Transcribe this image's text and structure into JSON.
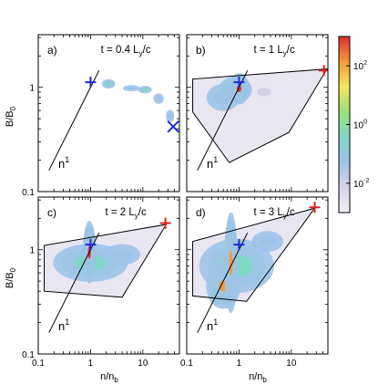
{
  "colors": {
    "frame": "#000000",
    "marker_blue": "#1f2bd6",
    "marker_red": "#e02020",
    "cmap": [
      "#f4f0f6",
      "#d6d2e6",
      "#9fc3e8",
      "#7fd7c6",
      "#9be07a",
      "#f2e85a",
      "#f29a3a",
      "#e03030"
    ]
  },
  "axis_labels": {
    "y": "B/B",
    "y_sub": "0",
    "x": "n/n",
    "x_sub": "b"
  },
  "colorbar": {
    "ticks": [
      {
        "value": 0.01,
        "base": "10",
        "exp": "-2"
      },
      {
        "value": 1,
        "base": "10",
        "exp": "0"
      },
      {
        "value": 100,
        "base": "10",
        "exp": "2"
      }
    ]
  },
  "chart_data": [
    {
      "type": "heatmap",
      "panel": "a)",
      "title": "t = 0.4 L",
      "title_sub": "y",
      "title_end": "/c",
      "xscale": "log",
      "yscale": "log",
      "xlim": [
        0.1,
        50
      ],
      "ylim": [
        0.1,
        3.2
      ],
      "x_ticks": [],
      "y_ticks": [
        "1",
        "0.1"
      ],
      "slope_label": "n",
      "slope_label_sup": "1",
      "slope_line": [
        [
          0.16,
          0.16
        ],
        [
          1.45,
          1.45
        ]
      ],
      "hull": [],
      "blobs": [
        {
          "x": 2.2,
          "y": 1.08,
          "rx": 0.1,
          "ry": 0.035,
          "level": 3
        },
        {
          "x": 6.0,
          "y": 0.98,
          "rx": 0.16,
          "ry": 0.03,
          "level": 2
        },
        {
          "x": 11.0,
          "y": 0.95,
          "rx": 0.1,
          "ry": 0.028,
          "level": 3
        },
        {
          "x": 20.0,
          "y": 0.78,
          "rx": 0.1,
          "ry": 0.05,
          "level": 2
        },
        {
          "x": 33.0,
          "y": 0.53,
          "rx": 0.08,
          "ry": 0.06,
          "level": 2
        }
      ],
      "markers": [
        {
          "x": 1.0,
          "y": 1.12,
          "symbol": "+",
          "color": "blue"
        },
        {
          "x": 38.0,
          "y": 0.42,
          "symbol": "x",
          "color": "blue"
        }
      ]
    },
    {
      "type": "heatmap",
      "panel": "b)",
      "title": "t = 1 L",
      "title_sub": "y",
      "title_end": "/c",
      "xscale": "log",
      "yscale": "log",
      "xlim": [
        0.1,
        50
      ],
      "ylim": [
        0.1,
        3.2
      ],
      "x_ticks": [],
      "y_ticks": [],
      "slope_label": "n",
      "slope_label_sup": "1",
      "slope_line": [
        [
          0.16,
          0.16
        ],
        [
          1.45,
          1.45
        ]
      ],
      "hull": [
        [
          0.13,
          1.2
        ],
        [
          0.13,
          0.58
        ],
        [
          0.65,
          0.19
        ],
        [
          9.0,
          0.37
        ],
        [
          48.0,
          1.5
        ]
      ],
      "blobs": [
        {
          "x": 0.5,
          "y": 0.8,
          "rx": 0.32,
          "ry": 0.13,
          "level": 2
        },
        {
          "x": 0.85,
          "y": 0.95,
          "rx": 0.2,
          "ry": 0.08,
          "level": 4
        },
        {
          "x": 1.0,
          "y": 0.97,
          "rx": 0.08,
          "ry": 0.06,
          "level": 7
        },
        {
          "x": 3.0,
          "y": 0.9,
          "rx": 0.25,
          "ry": 0.07,
          "level": 1
        }
      ],
      "markers": [
        {
          "x": 1.0,
          "y": 1.12,
          "symbol": "+",
          "color": "blue"
        },
        {
          "x": 42.0,
          "y": 1.45,
          "symbol": "+",
          "color": "red"
        }
      ]
    },
    {
      "type": "heatmap",
      "panel": "c)",
      "title": "t = 2 L",
      "title_sub": "y",
      "title_end": "/c",
      "xscale": "log",
      "yscale": "log",
      "xlim": [
        0.1,
        50
      ],
      "ylim": [
        0.1,
        3.2
      ],
      "x_ticks": [
        "0.1",
        "1",
        "10"
      ],
      "y_ticks": [
        "1",
        "0.1"
      ],
      "slope_label": "n",
      "slope_label_sup": "1",
      "slope_line": [
        [
          0.16,
          0.16
        ],
        [
          1.45,
          1.45
        ]
      ],
      "hull": [
        [
          0.13,
          1.1
        ],
        [
          0.13,
          0.4
        ],
        [
          4.0,
          0.35
        ],
        [
          28.0,
          1.75
        ]
      ],
      "blobs": [
        {
          "x": 1.0,
          "y": 0.75,
          "rx": 0.55,
          "ry": 0.14,
          "level": 3
        },
        {
          "x": 4.0,
          "y": 0.9,
          "rx": 0.35,
          "ry": 0.1,
          "level": 2
        },
        {
          "x": 0.95,
          "y": 0.95,
          "rx": 0.05,
          "ry": 0.12,
          "level": 7
        }
      ],
      "markers": [
        {
          "x": 1.0,
          "y": 1.12,
          "symbol": "+",
          "color": "blue"
        },
        {
          "x": 27.0,
          "y": 1.8,
          "symbol": "+",
          "color": "red"
        }
      ]
    },
    {
      "type": "heatmap",
      "panel": "d)",
      "title": "t = 3 L",
      "title_sub": "y",
      "title_end": "/c",
      "xscale": "log",
      "yscale": "log",
      "xlim": [
        0.1,
        50
      ],
      "ylim": [
        0.1,
        3.2
      ],
      "x_ticks": [
        "0.1",
        "1",
        "10"
      ],
      "y_ticks": [],
      "slope_label": "n",
      "slope_label_sup": "1",
      "slope_line": [
        [
          0.16,
          0.16
        ],
        [
          1.45,
          1.45
        ]
      ],
      "hull": [
        [
          0.13,
          1.2
        ],
        [
          0.13,
          0.36
        ],
        [
          1.4,
          0.32
        ],
        [
          28.0,
          2.5
        ]
      ],
      "blobs": [
        {
          "x": 0.9,
          "y": 0.7,
          "rx": 0.55,
          "ry": 0.2,
          "level": 3
        },
        {
          "x": 0.5,
          "y": 0.45,
          "rx": 0.15,
          "ry": 0.1,
          "level": 6
        },
        {
          "x": 0.7,
          "y": 0.75,
          "rx": 0.06,
          "ry": 0.22,
          "level": 6
        },
        {
          "x": 3.5,
          "y": 1.2,
          "rx": 0.3,
          "ry": 0.1,
          "level": 2
        }
      ],
      "markers": [
        {
          "x": 1.0,
          "y": 1.12,
          "symbol": "+",
          "color": "blue"
        },
        {
          "x": 28.0,
          "y": 2.55,
          "symbol": "+",
          "color": "red"
        }
      ]
    }
  ]
}
